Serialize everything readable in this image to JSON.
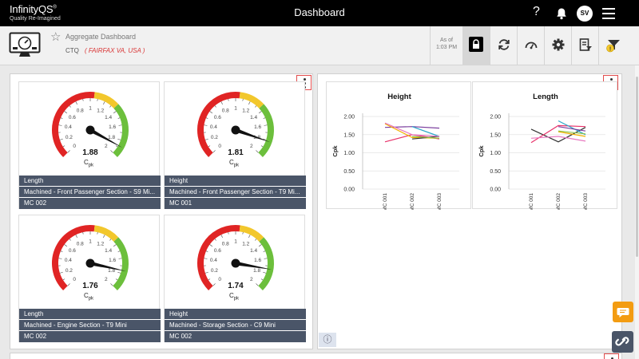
{
  "topbar": {
    "logo": "InfinityQS",
    "logo_mark": "®",
    "tagline": "Quality Re-Imagined",
    "title": "Dashboard",
    "help": "?",
    "user_initials": "SV"
  },
  "subheader": {
    "dashboard_name": "Aggregate Dashboard",
    "ctq_label": "CTQ",
    "ctq_location": "( FAIRFAX VA, USA )",
    "asof_label": "As of",
    "asof_time": "1:03 PM"
  },
  "gauge_ticks": [
    "0",
    "0.2",
    "0.4",
    "0.6",
    "0.8",
    "1",
    "1.2",
    "1.4",
    "1.6",
    "1.8",
    "2"
  ],
  "gauge_colors": {
    "red": "#e02424",
    "yellow": "#f2c72c",
    "green": "#6cbf3c"
  },
  "gauges": [
    {
      "value": 1.88,
      "value_label": "1.88",
      "unit": "C",
      "unit_sub": "pk",
      "feature": "Length",
      "part": "Machined - Front Passenger Section - S9 Mi...",
      "process": "MC 002"
    },
    {
      "value": 1.81,
      "value_label": "1.81",
      "unit": "C",
      "unit_sub": "pk",
      "feature": "Height",
      "part": "Machined - Front Passenger Section - T9 Mi...",
      "process": "MC 001"
    },
    {
      "value": 1.76,
      "value_label": "1.76",
      "unit": "C",
      "unit_sub": "pk",
      "feature": "Length",
      "part": "Machined - Engine Section - T9 Mini",
      "process": "MC 002"
    },
    {
      "value": 1.74,
      "value_label": "1.74",
      "unit": "C",
      "unit_sub": "pk",
      "feature": "Height",
      "part": "Machined - Storage Section - C9 Mini",
      "process": "MC 002"
    }
  ],
  "chart_data": [
    {
      "type": "line",
      "title": "Height",
      "ylabel": "Cpk",
      "categories": [
        "MC 001",
        "MC 002",
        "MC 003"
      ],
      "y_ticks": [
        "0.00",
        "0.50",
        "1.00",
        "1.50",
        "2.00"
      ],
      "ylim": [
        0,
        2
      ],
      "series": [
        {
          "color": "#7b3f9e",
          "values": [
            1.7,
            1.72,
            1.68
          ]
        },
        {
          "color": "#e8336b",
          "values": [
            1.3,
            1.5,
            1.38
          ]
        },
        {
          "color": "#f2b100",
          "values": [
            1.8,
            1.42,
            1.4
          ]
        },
        {
          "color": "#2aa7c9",
          "values": [
            null,
            1.72,
            1.45
          ]
        },
        {
          "color": "#333333",
          "values": [
            null,
            1.38,
            1.45
          ]
        },
        {
          "color": "#8bc34a",
          "values": [
            null,
            1.45,
            1.4
          ]
        },
        {
          "color": "#e879c0",
          "values": [
            1.82,
            1.5,
            1.45
          ]
        }
      ]
    },
    {
      "type": "line",
      "title": "Length",
      "ylabel": "Cpk",
      "categories": [
        "MC 001",
        "MC 002",
        "MC 003"
      ],
      "y_ticks": [
        "0.00",
        "0.50",
        "1.00",
        "1.50",
        "2.00"
      ],
      "ylim": [
        0,
        2
      ],
      "series": [
        {
          "color": "#333333",
          "values": [
            1.65,
            1.3,
            1.7
          ]
        },
        {
          "color": "#e8336b",
          "values": [
            1.28,
            1.75,
            1.72
          ]
        },
        {
          "color": "#2aa7c9",
          "values": [
            null,
            1.88,
            1.5
          ]
        },
        {
          "color": "#f2b100",
          "values": [
            null,
            1.58,
            1.45
          ]
        },
        {
          "color": "#8bc34a",
          "values": [
            null,
            1.6,
            1.52
          ]
        },
        {
          "color": "#7b3f9e",
          "values": [
            null,
            1.72,
            1.6
          ]
        },
        {
          "color": "#e879c0",
          "values": [
            1.4,
            1.45,
            1.32
          ]
        }
      ]
    }
  ]
}
